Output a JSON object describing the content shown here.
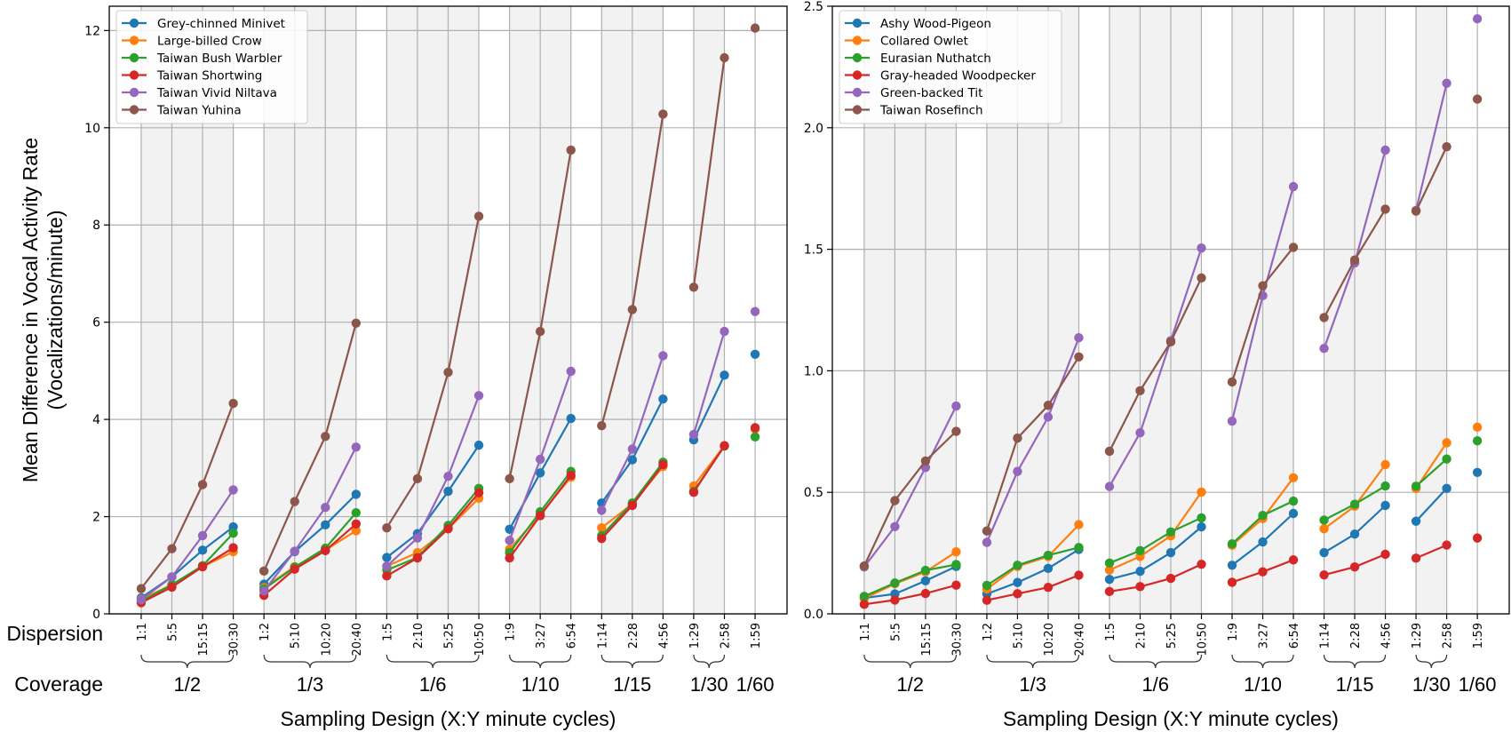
{
  "chart_data": [
    {
      "type": "line",
      "panel": "left",
      "ylabel": "Mean Difference in Vocal Activity Rate",
      "ylabel_line2": "(Vocalizations/minute)",
      "xlabel": "Sampling Design (X:Y minute cycles)",
      "row_label_dispersion": "Dispersion",
      "row_label_coverage": "Coverage",
      "ylim": [
        0,
        12.5
      ],
      "yticks": [
        0,
        2,
        4,
        6,
        8,
        10,
        12
      ],
      "ytick_labels": [
        "0",
        "2",
        "4",
        "6",
        "8",
        "10",
        "12"
      ],
      "grid": true,
      "legend_position": "top-left",
      "x": [
        "1:1",
        "5:5",
        "15:15",
        "30:30",
        "1:2",
        "5:10",
        "10:20",
        "20:40",
        "1:5",
        "2:10",
        "5:25",
        "10:50",
        "1:9",
        "3:27",
        "6:54",
        "1:14",
        "2:28",
        "4:56",
        "1:29",
        "2:58",
        "1:59"
      ],
      "groups": [
        {
          "coverage": "1/2",
          "members": [
            "1:1",
            "5:5",
            "15:15",
            "30:30"
          ],
          "shaded": true
        },
        {
          "coverage": "1/3",
          "members": [
            "1:2",
            "5:10",
            "10:20",
            "20:40"
          ],
          "shaded": true
        },
        {
          "coverage": "1/6",
          "members": [
            "1:5",
            "2:10",
            "5:25",
            "10:50"
          ],
          "shaded": true
        },
        {
          "coverage": "1/10",
          "members": [
            "1:9",
            "3:27",
            "6:54"
          ],
          "shaded": true
        },
        {
          "coverage": "1/15",
          "members": [
            "1:14",
            "2:28",
            "4:56"
          ],
          "shaded": true
        },
        {
          "coverage": "1/30",
          "members": [
            "1:29",
            "2:58"
          ],
          "shaded": true
        },
        {
          "coverage": "1/60",
          "members": [
            "1:59"
          ],
          "shaded": false
        }
      ],
      "series": [
        {
          "name": "Grey-chinned Minivet",
          "color": "#1f77b4",
          "values": [
            0.33,
            0.76,
            1.31,
            1.79,
            0.61,
            1.28,
            1.83,
            2.46,
            1.16,
            1.65,
            2.52,
            3.47,
            1.74,
            2.9,
            4.02,
            2.28,
            3.17,
            4.42,
            3.58,
            4.91,
            5.34
          ]
        },
        {
          "name": "Large-billed Crow",
          "color": "#ff7f0e",
          "values": [
            0.3,
            0.6,
            0.97,
            1.28,
            0.54,
            0.97,
            1.31,
            1.71,
            0.98,
            1.26,
            1.75,
            2.38,
            1.33,
            2.04,
            2.81,
            1.77,
            2.26,
            3.03,
            2.63,
            3.46,
            3.8
          ]
        },
        {
          "name": "Taiwan Bush Warbler",
          "color": "#2ca02c",
          "values": [
            0.26,
            0.6,
            0.99,
            1.66,
            0.51,
            0.96,
            1.35,
            2.08,
            0.9,
            1.16,
            1.82,
            2.58,
            1.26,
            2.1,
            2.93,
            1.61,
            2.28,
            3.12,
            2.52,
            3.45,
            3.64
          ]
        },
        {
          "name": "Taiwan Shortwing",
          "color": "#d62728",
          "values": [
            0.23,
            0.55,
            0.97,
            1.36,
            0.38,
            0.92,
            1.3,
            1.85,
            0.78,
            1.15,
            1.75,
            2.49,
            1.15,
            2.02,
            2.85,
            1.55,
            2.23,
            3.07,
            2.5,
            3.46,
            3.83
          ]
        },
        {
          "name": "Taiwan Vivid Niltava",
          "color": "#9467bd",
          "values": [
            0.29,
            0.76,
            1.61,
            2.55,
            0.47,
            1.29,
            2.19,
            3.43,
            0.98,
            1.56,
            2.83,
            4.49,
            1.51,
            3.18,
            4.99,
            2.13,
            3.39,
            5.31,
            3.69,
            5.81,
            6.22
          ]
        },
        {
          "name": "Taiwan Yuhina",
          "color": "#8c564b",
          "values": [
            0.52,
            1.34,
            2.66,
            4.33,
            0.88,
            2.31,
            3.65,
            5.98,
            1.77,
            2.78,
            4.97,
            8.18,
            2.78,
            5.81,
            9.54,
            3.87,
            6.26,
            10.28,
            6.72,
            11.44,
            12.05
          ]
        }
      ]
    },
    {
      "type": "line",
      "panel": "right",
      "xlabel": "Sampling Design (X:Y minute cycles)",
      "ylim": [
        0,
        2.5
      ],
      "yticks": [
        0,
        0.5,
        1.0,
        1.5,
        2.0,
        2.5
      ],
      "ytick_labels": [
        "0.0",
        "0.5",
        "1.0",
        "1.5",
        "2.0",
        "2.5"
      ],
      "grid": true,
      "legend_position": "top-left",
      "x": [
        "1:1",
        "5:5",
        "15:15",
        "30:30",
        "1:2",
        "5:10",
        "10:20",
        "20:40",
        "1:5",
        "2:10",
        "5:25",
        "10:50",
        "1:9",
        "3:27",
        "6:54",
        "1:14",
        "2:28",
        "4:56",
        "1:29",
        "2:58",
        "1:59"
      ],
      "groups": [
        {
          "coverage": "1/2",
          "members": [
            "1:1",
            "5:5",
            "15:15",
            "30:30"
          ],
          "shaded": true
        },
        {
          "coverage": "1/3",
          "members": [
            "1:2",
            "5:10",
            "10:20",
            "20:40"
          ],
          "shaded": true
        },
        {
          "coverage": "1/6",
          "members": [
            "1:5",
            "2:10",
            "5:25",
            "10:50"
          ],
          "shaded": true
        },
        {
          "coverage": "1/10",
          "members": [
            "1:9",
            "3:27",
            "6:54"
          ],
          "shaded": true
        },
        {
          "coverage": "1/15",
          "members": [
            "1:14",
            "2:28",
            "4:56"
          ],
          "shaded": true
        },
        {
          "coverage": "1/30",
          "members": [
            "1:29",
            "2:58"
          ],
          "shaded": true
        },
        {
          "coverage": "1/60",
          "members": [
            "1:59"
          ],
          "shaded": false
        }
      ],
      "series": [
        {
          "name": "Ashy Wood-Pigeon",
          "color": "#1f77b4",
          "values": [
            0.065,
            0.082,
            0.136,
            0.195,
            0.082,
            0.129,
            0.187,
            0.265,
            0.142,
            0.175,
            0.252,
            0.358,
            0.2,
            0.296,
            0.413,
            0.252,
            0.328,
            0.446,
            0.381,
            0.516,
            0.582
          ]
        },
        {
          "name": "Collared Owlet",
          "color": "#ff7f0e",
          "values": [
            0.063,
            0.124,
            0.173,
            0.255,
            0.102,
            0.195,
            0.236,
            0.367,
            0.18,
            0.236,
            0.321,
            0.501,
            0.282,
            0.392,
            0.56,
            0.35,
            0.443,
            0.614,
            0.516,
            0.704,
            0.768
          ]
        },
        {
          "name": "Eurasian Nuthatch",
          "color": "#2ca02c",
          "values": [
            0.072,
            0.127,
            0.179,
            0.203,
            0.117,
            0.2,
            0.241,
            0.273,
            0.209,
            0.26,
            0.337,
            0.395,
            0.288,
            0.405,
            0.464,
            0.386,
            0.451,
            0.526,
            0.525,
            0.637,
            0.712
          ]
        },
        {
          "name": "Gray-headed Woodpecker",
          "color": "#d62728",
          "values": [
            0.039,
            0.057,
            0.084,
            0.118,
            0.056,
            0.083,
            0.109,
            0.159,
            0.092,
            0.112,
            0.146,
            0.204,
            0.13,
            0.173,
            0.222,
            0.16,
            0.193,
            0.245,
            0.229,
            0.283,
            0.312
          ]
        },
        {
          "name": "Green-backed Tit",
          "color": "#9467bd",
          "values": [
            0.193,
            0.359,
            0.602,
            0.855,
            0.294,
            0.586,
            0.81,
            1.136,
            0.524,
            0.745,
            1.124,
            1.505,
            0.793,
            1.309,
            1.758,
            1.092,
            1.444,
            1.908,
            1.66,
            2.183,
            2.448
          ]
        },
        {
          "name": "Taiwan Rosefinch",
          "color": "#8c564b",
          "values": [
            0.197,
            0.466,
            0.629,
            0.751,
            0.341,
            0.723,
            0.858,
            1.057,
            0.669,
            0.918,
            1.119,
            1.382,
            0.954,
            1.35,
            1.508,
            1.219,
            1.456,
            1.665,
            1.657,
            1.922,
            2.118
          ]
        }
      ]
    }
  ]
}
